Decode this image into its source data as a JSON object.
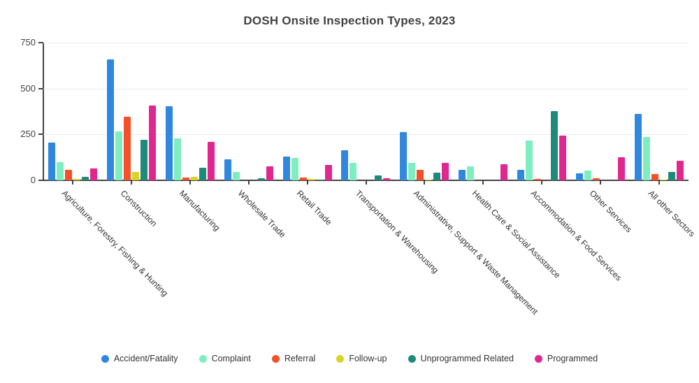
{
  "chart_data": {
    "type": "bar",
    "title": "DOSH Onsite Inspection Types, 2023",
    "xlabel": "",
    "ylabel": "",
    "ylim": [
      0,
      750
    ],
    "yticks": [
      0,
      250,
      500,
      750
    ],
    "grid": true,
    "legend_position": "bottom-center",
    "categories": [
      "Agriculture, Forestry, Fishing & Hunting",
      "Construction",
      "Manufacturing",
      "Wholesale Trade",
      "Retail Trade",
      "Transportation & Warehousing",
      "Administrative, Support & Waste Management",
      "Health Care & Social Assistance",
      "Accommodation & Food Services",
      "Other Services",
      "All other Sectors"
    ],
    "series": [
      {
        "name": "Accident/Fatality",
        "color": "#2f87e0",
        "values": [
          205,
          658,
          405,
          114,
          130,
          165,
          262,
          59,
          58,
          38,
          362
        ]
      },
      {
        "name": "Complaint",
        "color": "#7eeec0",
        "values": [
          98,
          267,
          228,
          45,
          122,
          97,
          95,
          76,
          218,
          53,
          235
        ]
      },
      {
        "name": "Referral",
        "color": "#f4502a",
        "values": [
          58,
          347,
          15,
          0,
          17,
          0,
          58,
          0,
          8,
          12,
          35
        ]
      },
      {
        "name": "Follow-up",
        "color": "#d9d322",
        "values": [
          8,
          47,
          19,
          0,
          8,
          0,
          5,
          0,
          0,
          0,
          3
        ]
      },
      {
        "name": "Unprogrammed Related",
        "color": "#1f8a7a",
        "values": [
          20,
          222,
          68,
          11,
          4,
          27,
          40,
          0,
          378,
          0,
          44
        ]
      },
      {
        "name": "Programmed",
        "color": "#e02790",
        "values": [
          65,
          408,
          208,
          76,
          82,
          13,
          97,
          86,
          243,
          127,
          105
        ]
      }
    ],
    "colors": {
      "axis": "#424242",
      "grid": "#ebebeb",
      "tick_label": "#424242",
      "category_label": "#333333",
      "title": "#424242"
    }
  }
}
